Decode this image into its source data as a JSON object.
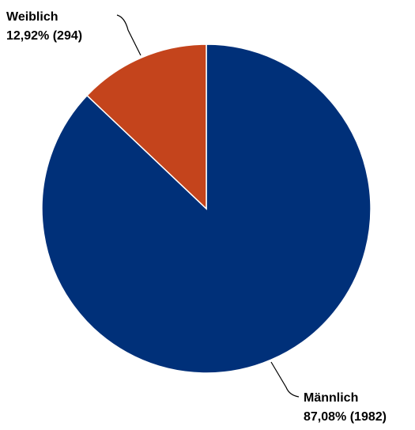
{
  "chart_data": {
    "type": "pie",
    "title": "",
    "slices": [
      {
        "label": "Männlich",
        "percent_text": "87,08% (1982)",
        "percent": 87.08,
        "value": 1982,
        "color": "#003079"
      },
      {
        "label": "Weiblich",
        "percent_text": "12,92% (294)",
        "percent": 12.92,
        "value": 294,
        "color": "#c4441c"
      }
    ],
    "start_angle_deg": 0,
    "direction": "clockwise",
    "legend": "none"
  }
}
